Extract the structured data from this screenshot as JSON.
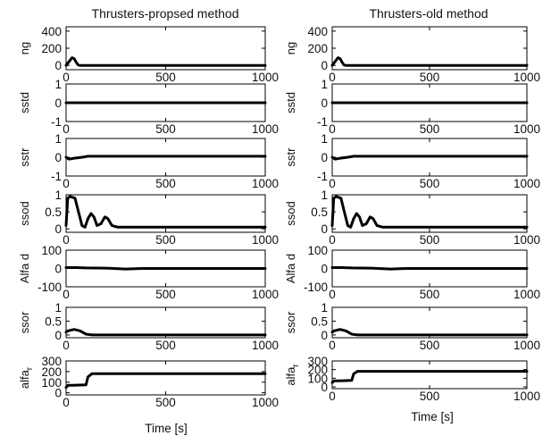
{
  "chart_data": [
    {
      "type": "line",
      "column": 0,
      "title": "Thrusters-propsed method",
      "xlabel": "Time [s]",
      "xlim": [
        0,
        1000
      ],
      "panels": [
        {
          "ylabel": "ng",
          "ylim": [
            -50,
            450
          ],
          "yticks": [
            "0",
            "200",
            "400"
          ],
          "xticks": [
            "0",
            "500",
            "1000"
          ],
          "x": [
            0,
            20,
            30,
            40,
            50,
            60,
            70,
            1000
          ],
          "y": [
            0,
            60,
            90,
            80,
            40,
            5,
            0,
            0
          ]
        },
        {
          "ylabel": "sstd",
          "ylim": [
            -1,
            1
          ],
          "yticks": [
            "-1",
            "0",
            "1"
          ],
          "xticks": [
            "0",
            "500",
            "1000"
          ],
          "x": [
            0,
            1000
          ],
          "y": [
            0,
            0
          ]
        },
        {
          "ylabel": "sstr",
          "ylim": [
            -1,
            1
          ],
          "yticks": [
            "-1",
            "0",
            "1"
          ],
          "xticks": [
            "0",
            "500",
            "1000"
          ],
          "x": [
            0,
            15,
            40,
            80,
            110,
            140,
            1000
          ],
          "y": [
            0,
            -0.1,
            -0.05,
            0,
            0.05,
            0.05,
            0.05
          ]
        },
        {
          "ylabel": "ssod",
          "ylim": [
            -0.1,
            1
          ],
          "yticks": [
            "0",
            "0.5",
            "1"
          ],
          "xticks": [
            "0",
            "500",
            "1000"
          ],
          "x": [
            0,
            8,
            20,
            45,
            60,
            80,
            95,
            110,
            125,
            140,
            155,
            175,
            195,
            210,
            230,
            260,
            1000
          ],
          "y": [
            0.1,
            0.9,
            0.95,
            0.9,
            0.55,
            0.1,
            0.05,
            0.3,
            0.45,
            0.35,
            0.1,
            0.15,
            0.35,
            0.3,
            0.1,
            0.05,
            0.05
          ]
        },
        {
          "ylabel": "Alfa d",
          "ylim": [
            -100,
            100
          ],
          "yticks": [
            "-100",
            "0",
            "100"
          ],
          "xticks": [
            "0",
            "500",
            "1000"
          ],
          "x": [
            0,
            50,
            100,
            200,
            300,
            380,
            1000
          ],
          "y": [
            5,
            5,
            3,
            2,
            -3,
            0,
            0
          ]
        },
        {
          "ylabel": "ssor",
          "ylim": [
            -0.1,
            1
          ],
          "yticks": [
            "0",
            "0.5",
            "1"
          ],
          "xticks": [
            "0",
            "500",
            "1000"
          ],
          "x": [
            0,
            10,
            40,
            70,
            100,
            130,
            1000
          ],
          "y": [
            0.1,
            0.15,
            0.2,
            0.15,
            0.03,
            0,
            0
          ]
        },
        {
          "ylabel": "alfa_r",
          "ylim": [
            -20,
            300
          ],
          "yticks": [
            "0",
            "100",
            "200",
            "300"
          ],
          "xticks": [
            "0",
            "500",
            "1000"
          ],
          "x": [
            0,
            10,
            30,
            100,
            110,
            130,
            1000
          ],
          "y": [
            50,
            70,
            70,
            75,
            150,
            180,
            180
          ]
        }
      ]
    },
    {
      "type": "line",
      "column": 1,
      "title": "Thrusters-old method",
      "xlabel": "Time [s]",
      "xlim": [
        0,
        1000
      ],
      "panels": [
        {
          "ylabel": "ng",
          "ylim": [
            -50,
            450
          ],
          "yticks": [
            "0",
            "200",
            "400"
          ],
          "xticks": [
            "0",
            "500",
            "1000"
          ],
          "x": [
            0,
            20,
            30,
            40,
            50,
            60,
            70,
            1000
          ],
          "y": [
            0,
            60,
            90,
            80,
            40,
            5,
            0,
            0
          ]
        },
        {
          "ylabel": "sstd",
          "ylim": [
            -1,
            1
          ],
          "yticks": [
            "-1",
            "0",
            "1"
          ],
          "xticks": [
            "0",
            "500",
            "1000"
          ],
          "x": [
            0,
            1000
          ],
          "y": [
            0,
            0
          ]
        },
        {
          "ylabel": "sstr",
          "ylim": [
            -1,
            1
          ],
          "yticks": [
            "-1",
            "0",
            "1"
          ],
          "xticks": [
            "0",
            "500",
            "1000"
          ],
          "x": [
            0,
            15,
            40,
            80,
            110,
            140,
            1000
          ],
          "y": [
            0,
            -0.1,
            -0.05,
            0,
            0.05,
            0.05,
            0.05
          ]
        },
        {
          "ylabel": "ssod",
          "ylim": [
            -0.1,
            1
          ],
          "yticks": [
            "0",
            "0.5",
            "1"
          ],
          "xticks": [
            "0",
            "500",
            "1000"
          ],
          "x": [
            0,
            8,
            20,
            45,
            60,
            80,
            95,
            110,
            125,
            140,
            155,
            175,
            195,
            210,
            230,
            260,
            1000
          ],
          "y": [
            0.1,
            0.9,
            0.95,
            0.9,
            0.55,
            0.1,
            0.05,
            0.3,
            0.45,
            0.35,
            0.1,
            0.15,
            0.35,
            0.3,
            0.1,
            0.05,
            0.05
          ]
        },
        {
          "ylabel": "Alfa d",
          "ylim": [
            -100,
            100
          ],
          "yticks": [
            "-100",
            "0",
            "100"
          ],
          "xticks": [
            "0",
            "500",
            "1000"
          ],
          "x": [
            0,
            50,
            100,
            200,
            300,
            380,
            1000
          ],
          "y": [
            5,
            5,
            3,
            2,
            -3,
            0,
            0
          ]
        },
        {
          "ylabel": "ssor",
          "ylim": [
            -0.1,
            1
          ],
          "yticks": [
            "0",
            "0.5",
            "1"
          ],
          "xticks": [
            "0",
            "500",
            "1000"
          ],
          "x": [
            0,
            10,
            40,
            70,
            100,
            130,
            1000
          ],
          "y": [
            0.1,
            0.15,
            0.2,
            0.15,
            0.03,
            0,
            0
          ]
        },
        {
          "ylabel": "alfa_r",
          "ylim": [
            -20,
            300
          ],
          "yticks": [
            "0",
            "100",
            "200",
            "300"
          ],
          "xticks": [
            "0",
            "500",
            "1000"
          ],
          "x": [
            0,
            10,
            30,
            100,
            110,
            130,
            1000
          ],
          "y": [
            50,
            70,
            70,
            75,
            150,
            180,
            180
          ]
        }
      ]
    }
  ]
}
